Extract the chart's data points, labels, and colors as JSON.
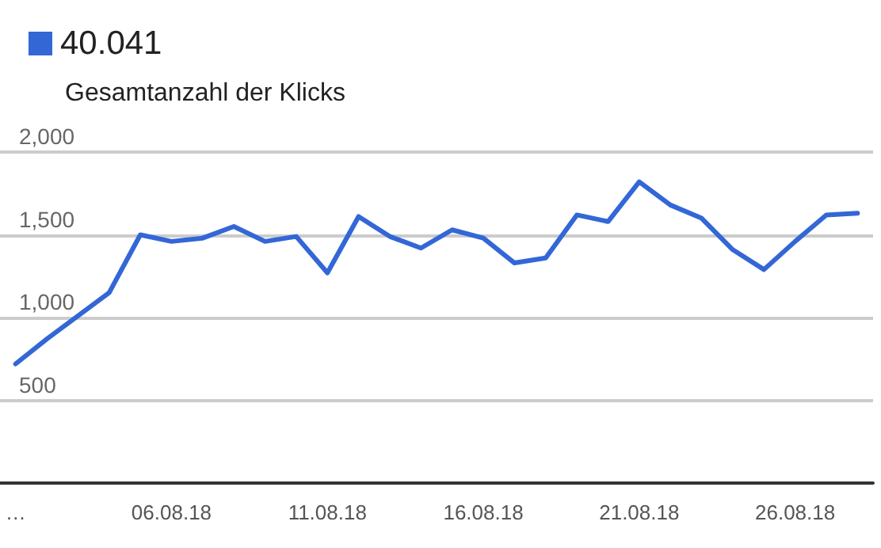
{
  "chart_data": {
    "type": "line",
    "subtitle": "Gesamtanzahl der Klicks",
    "categories": [
      "…",
      null,
      null,
      null,
      null,
      "06.08.18",
      null,
      null,
      null,
      null,
      "11.08.18",
      null,
      null,
      null,
      null,
      "16.08.18",
      null,
      null,
      null,
      null,
      "21.08.18",
      null,
      null,
      null,
      null,
      "26.08.18",
      null,
      null
    ],
    "series": [
      {
        "name": "40.041",
        "color": "#3367d6",
        "values": [
          720,
          870,
          1010,
          1150,
          1500,
          1460,
          1480,
          1550,
          1460,
          1490,
          1270,
          1610,
          1490,
          1420,
          1530,
          1480,
          1330,
          1360,
          1620,
          1580,
          1820,
          1680,
          1600,
          1410,
          1290,
          1460,
          1620,
          1630
        ]
      }
    ],
    "ylim": [
      0,
      2000
    ],
    "yticks": [
      500,
      {
        "value": 1000,
        "label": "1,000"
      },
      {
        "value": 1500,
        "label": "1,500"
      },
      {
        "value": 2000,
        "label": "2,000"
      }
    ],
    "grid": "y",
    "legend": "top left",
    "marker": "none",
    "line_style": "solid"
  }
}
